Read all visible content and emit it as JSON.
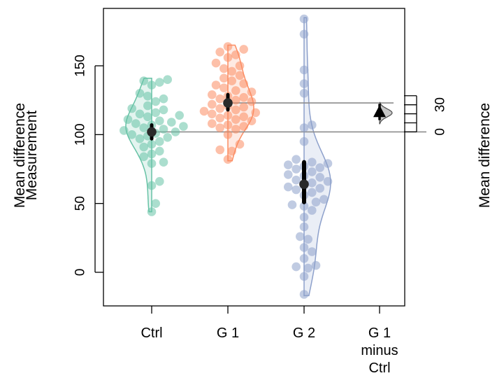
{
  "chart_data": {
    "type": "scatter",
    "subtype": "estimation-plot (beeswarm + violin + mean difference)",
    "ylabel_left": "Measurement",
    "ylabel_left_overlay": "Mean difference",
    "ylabel_right": "Mean difference",
    "ylim": [
      -25,
      190
    ],
    "y_ticks": [
      0,
      50,
      100,
      150
    ],
    "right_ticks": [
      0,
      30
    ],
    "right_ticks_minor": [
      10,
      20,
      40
    ],
    "categories": [
      "Ctrl",
      "G 1",
      "G 2",
      "G 1\nminus\nCtrl"
    ],
    "colors": {
      "Ctrl": "#66C2A5",
      "G 1": "#FC8D62",
      "G 2": "#8DA0CB",
      "diff": "#BDBDBD"
    },
    "groups": [
      {
        "name": "Ctrl",
        "mean": 102,
        "ci": [
          97,
          107
        ],
        "violin_range": [
          44,
          141
        ],
        "values": [
          44,
          50,
          63,
          66,
          79,
          80,
          84,
          86,
          88,
          91,
          93,
          95,
          97,
          98,
          99,
          100,
          101,
          102,
          103,
          104,
          105,
          106,
          107,
          108,
          109,
          110,
          111,
          113,
          114,
          115,
          116,
          118,
          119,
          121,
          124,
          126,
          128,
          130,
          136,
          138,
          139,
          140
        ]
      },
      {
        "name": "G 1",
        "mean": 123,
        "ci": [
          118,
          129
        ],
        "violin_range": [
          81,
          165
        ],
        "values": [
          82,
          88,
          89,
          93,
          100,
          104,
          105,
          106,
          107,
          108,
          110,
          111,
          112,
          113,
          114,
          115,
          116,
          117,
          118,
          119,
          120,
          121,
          122,
          124,
          125,
          126,
          127,
          128,
          129,
          131,
          132,
          134,
          136,
          137,
          139,
          141,
          143,
          146,
          148,
          150,
          152,
          156,
          158,
          160,
          162,
          164
        ]
      },
      {
        "name": "G 2",
        "mean": 64,
        "ci": [
          51,
          80
        ],
        "violin_range": [
          -17,
          185
        ],
        "values": [
          -16,
          -3,
          3,
          4,
          5,
          10,
          15,
          18,
          24,
          26,
          33,
          40,
          45,
          48,
          49,
          51,
          53,
          56,
          58,
          60,
          61,
          62,
          63,
          65,
          66,
          67,
          69,
          70,
          71,
          73,
          75,
          76,
          77,
          78,
          79,
          80,
          82,
          95,
          105,
          107,
          130,
          137,
          147,
          173,
          184
        ]
      }
    ],
    "mean_difference": {
      "label": "G 1\nminus\nCtrl",
      "value": 21,
      "ci": [
        13,
        31
      ],
      "distribution_range": [
        9,
        33
      ]
    }
  }
}
